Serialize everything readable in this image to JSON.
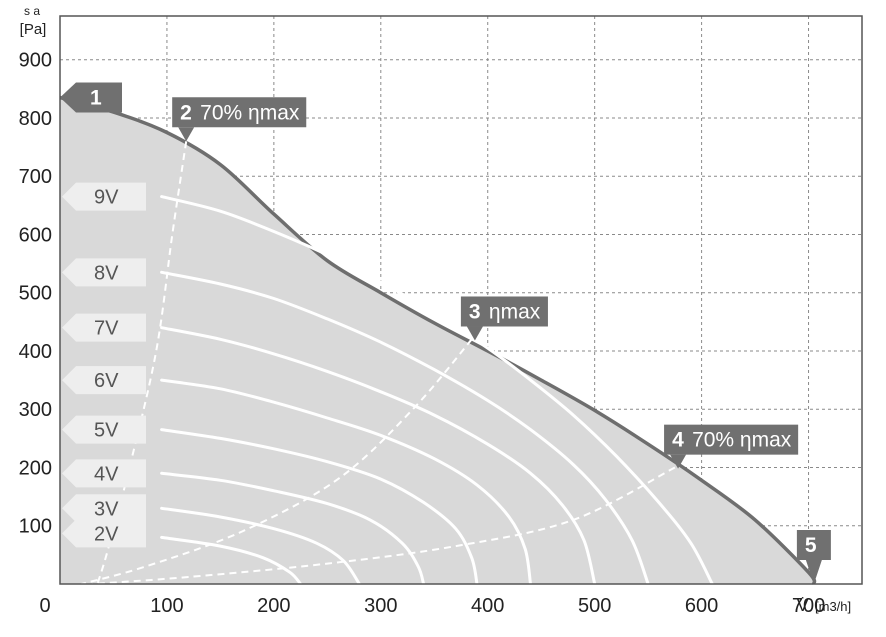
{
  "chart_data": {
    "type": "line",
    "title": "",
    "xlabel": "V̇",
    "xunit": "[m3/h]",
    "ylabel": "s a",
    "yunit": "[Pa]",
    "xlim": [
      0,
      750
    ],
    "ylim": [
      0,
      975
    ],
    "x_ticks": [
      "100",
      "200",
      "300",
      "400",
      "500",
      "600",
      "700"
    ],
    "y_ticks": [
      "100",
      "200",
      "300",
      "400",
      "500",
      "600",
      "700",
      "800",
      "900"
    ],
    "origin_label": "0",
    "grid": true,
    "colors": {
      "envelope_fill": "#d9d9d9",
      "envelope_line": "#6e6e6e",
      "curve": "#ffffff",
      "marker": "#707070",
      "label_box": "#eeeeee"
    },
    "envelope": [
      [
        0,
        835
      ],
      [
        50,
        810
      ],
      [
        100,
        775
      ],
      [
        150,
        720
      ],
      [
        200,
        635
      ],
      [
        250,
        555
      ],
      [
        300,
        500
      ],
      [
        350,
        448
      ],
      [
        400,
        400
      ],
      [
        450,
        350
      ],
      [
        500,
        298
      ],
      [
        550,
        240
      ],
      [
        600,
        178
      ],
      [
        650,
        110
      ],
      [
        700,
        20
      ],
      [
        705,
        0
      ]
    ],
    "series": [
      {
        "name": "9V",
        "points": [
          [
            95,
            665
          ],
          [
            150,
            640
          ],
          [
            200,
            605
          ],
          [
            250,
            565
          ],
          [
            300,
            518
          ],
          [
            350,
            465
          ],
          [
            400,
            405
          ],
          [
            440,
            350
          ],
          [
            480,
            290
          ],
          [
            520,
            220
          ],
          [
            560,
            140
          ],
          [
            590,
            70
          ],
          [
            610,
            0
          ]
        ]
      },
      {
        "name": "8V",
        "points": [
          [
            95,
            535
          ],
          [
            150,
            515
          ],
          [
            200,
            490
          ],
          [
            250,
            455
          ],
          [
            300,
            415
          ],
          [
            350,
            368
          ],
          [
            400,
            315
          ],
          [
            440,
            265
          ],
          [
            480,
            205
          ],
          [
            510,
            145
          ],
          [
            535,
            75
          ],
          [
            550,
            0
          ]
        ]
      },
      {
        "name": "7V",
        "points": [
          [
            95,
            440
          ],
          [
            150,
            420
          ],
          [
            200,
            395
          ],
          [
            250,
            365
          ],
          [
            300,
            330
          ],
          [
            350,
            290
          ],
          [
            400,
            240
          ],
          [
            440,
            190
          ],
          [
            470,
            135
          ],
          [
            490,
            75
          ],
          [
            500,
            0
          ]
        ]
      },
      {
        "name": "6V",
        "points": [
          [
            95,
            350
          ],
          [
            150,
            335
          ],
          [
            200,
            312
          ],
          [
            250,
            285
          ],
          [
            300,
            255
          ],
          [
            350,
            215
          ],
          [
            390,
            170
          ],
          [
            420,
            115
          ],
          [
            435,
            60
          ],
          [
            440,
            0
          ]
        ]
      },
      {
        "name": "5V",
        "points": [
          [
            95,
            265
          ],
          [
            150,
            250
          ],
          [
            200,
            232
          ],
          [
            250,
            210
          ],
          [
            300,
            180
          ],
          [
            340,
            140
          ],
          [
            370,
            95
          ],
          [
            385,
            45
          ],
          [
            390,
            0
          ]
        ]
      },
      {
        "name": "4V",
        "points": [
          [
            95,
            190
          ],
          [
            150,
            178
          ],
          [
            200,
            160
          ],
          [
            250,
            138
          ],
          [
            290,
            110
          ],
          [
            320,
            70
          ],
          [
            335,
            30
          ],
          [
            340,
            0
          ]
        ]
      },
      {
        "name": "3V",
        "points": [
          [
            95,
            130
          ],
          [
            150,
            115
          ],
          [
            200,
            95
          ],
          [
            240,
            70
          ],
          [
            265,
            40
          ],
          [
            280,
            0
          ]
        ]
      },
      {
        "name": "2V",
        "points": [
          [
            95,
            80
          ],
          [
            150,
            65
          ],
          [
            190,
            45
          ],
          [
            215,
            20
          ],
          [
            225,
            0
          ]
        ]
      }
    ],
    "efficiency_lines": [
      {
        "name": "70% ηmax left",
        "points": [
          [
            118,
            760
          ],
          [
            105,
            600
          ],
          [
            90,
            400
          ],
          [
            65,
            200
          ],
          [
            45,
            60
          ],
          [
            35,
            0
          ]
        ]
      },
      {
        "name": "ηmax",
        "points": [
          [
            385,
            420
          ],
          [
            330,
            300
          ],
          [
            260,
            180
          ],
          [
            170,
            90
          ],
          [
            80,
            30
          ],
          [
            20,
            0
          ]
        ]
      },
      {
        "name": "70% ηmax right",
        "points": [
          [
            575,
            200
          ],
          [
            480,
            110
          ],
          [
            370,
            65
          ],
          [
            250,
            35
          ],
          [
            120,
            12
          ],
          [
            30,
            0
          ]
        ]
      }
    ],
    "markers": [
      {
        "num": "1",
        "text": "",
        "x": 0,
        "y": 835
      },
      {
        "num": "2",
        "text": "70% ηmax",
        "x": 118,
        "y": 760
      },
      {
        "num": "3",
        "text": "ηmax",
        "x": 388,
        "y": 418
      },
      {
        "num": "4",
        "text": "70% ηmax",
        "x": 578,
        "y": 198
      },
      {
        "num": "5",
        "text": "",
        "x": 705,
        "y": 0
      }
    ]
  }
}
